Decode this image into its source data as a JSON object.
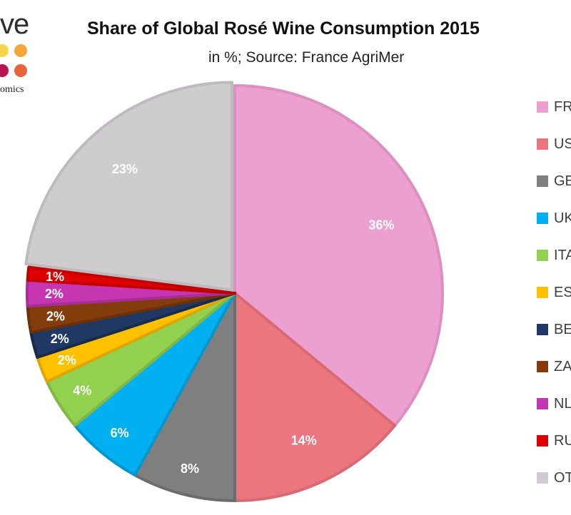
{
  "header": {
    "title": "Share of Global Rosé Wine Consumption 2015",
    "subtitle": "in %; Source: France AgriMer"
  },
  "logo": {
    "word": "ve",
    "sub": "omics",
    "dot_colors": [
      "#f3d64a",
      "#f5a53a",
      "#b8144d",
      "#e8623a"
    ]
  },
  "chart_data": {
    "type": "pie",
    "title": "Share of Global Rosé Wine Consumption 2015",
    "subtitle": "in %; Source: France AgriMer",
    "legend_position": "right",
    "start": "12 o'clock",
    "direction": "clockwise",
    "slices": [
      {
        "legend": "FR",
        "value": 36,
        "label": "36%",
        "color": "#eba0cf",
        "border": "#dd8fc0"
      },
      {
        "legend": "US",
        "value": 14,
        "label": "14%",
        "color": "#ec7680",
        "border": "#d86a74"
      },
      {
        "legend": "GE",
        "value": 8,
        "label": "8%",
        "color": "#7f7f7f",
        "border": "#6c6c6c"
      },
      {
        "legend": "UK",
        "value": 6,
        "label": "6%",
        "color": "#00b0f0",
        "border": "#0097cf"
      },
      {
        "legend": "ITA",
        "value": 4,
        "label": "4%",
        "color": "#92d050",
        "border": "#7fb843"
      },
      {
        "legend": "ES",
        "value": 2,
        "label": "2%",
        "color": "#ffc000",
        "border": "#dda600"
      },
      {
        "legend": "BE",
        "value": 2,
        "label": "2%",
        "color": "#1f3864",
        "border": "#172b4d"
      },
      {
        "legend": "ZA",
        "value": 2,
        "label": "2%",
        "color": "#843c0c",
        "border": "#6d310a"
      },
      {
        "legend": "NL",
        "value": 2,
        "label": "2%",
        "color": "#c636b1",
        "border": "#a92d97"
      },
      {
        "legend": "RU",
        "value": 1,
        "label": "1%",
        "color": "#e00000",
        "border": "#c20000"
      },
      {
        "legend": "OT",
        "value": 23,
        "label": "23%",
        "color": "#cfcccf",
        "border": "#bdbbbd"
      }
    ]
  }
}
